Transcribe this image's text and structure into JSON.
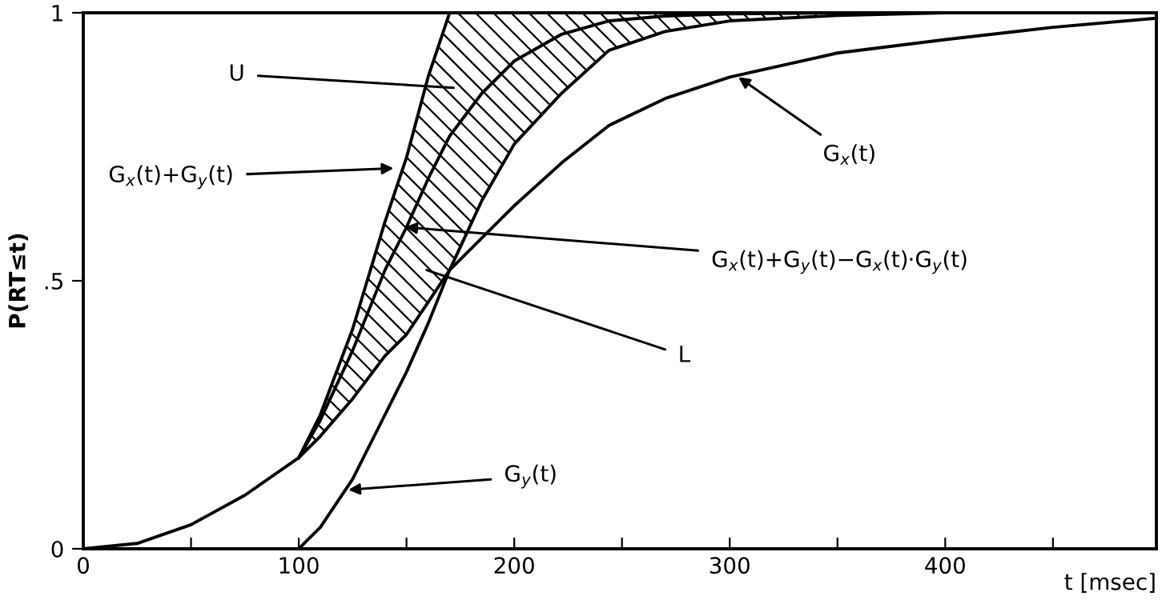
{
  "chart_data": {
    "type": "line",
    "xlabel": "t [msec]",
    "ylabel": "P(RT≤t)",
    "x": [
      0,
      25,
      50,
      75,
      100,
      110,
      125,
      140,
      150,
      160,
      170,
      185,
      200,
      222,
      244,
      270,
      300,
      350,
      400,
      450,
      498
    ],
    "series": [
      {
        "color": "#000000",
        "values": [
          0,
          0.01,
          0.045,
          0.1,
          0.17,
          0.21,
          0.28,
          0.36,
          0.4,
          0.46,
          0.52,
          0.58,
          0.64,
          0.72,
          0.79,
          0.84,
          0.88,
          0.925,
          0.95,
          0.973,
          0.99
        ]
      },
      {
        "color": "#000000",
        "values": [
          0,
          0,
          0,
          0,
          0,
          0.04,
          0.13,
          0.25,
          0.33,
          0.42,
          0.52,
          0.65,
          0.755,
          0.85,
          0.93,
          0.965,
          0.985,
          0.995,
          1,
          1,
          1
        ]
      },
      {
        "color": "#000000",
        "values": [
          null,
          null,
          null,
          null,
          0.17,
          0.25,
          0.41,
          0.61,
          0.73,
          0.88,
          1,
          null,
          null,
          null,
          null,
          null,
          null,
          null,
          null,
          null,
          null
        ]
      },
      {
        "color": "#000000",
        "values": [
          null,
          null,
          null,
          null,
          0.17,
          0.24,
          0.37,
          0.52,
          0.6,
          0.69,
          0.77,
          0.85,
          0.91,
          0.96,
          0.985,
          0.994,
          0.998,
          1,
          1,
          1,
          1
        ],
        "lower": [
          null,
          null,
          null,
          null,
          0.17,
          0.21,
          0.28,
          0.36,
          0.4,
          0.46,
          0.52,
          0.65,
          0.755,
          0.85,
          0.93,
          0.965,
          0.985,
          0.995,
          1,
          1,
          1
        ],
        "upper": [
          null,
          null,
          null,
          null,
          0.17,
          0.25,
          0.41,
          0.61,
          0.73,
          0.88,
          1,
          1,
          1,
          1,
          1,
          1,
          1,
          1,
          1,
          1,
          1
        ]
      }
    ],
    "xlim": [
      0,
      498
    ],
    "ylim": [
      0,
      1
    ],
    "xticks": [
      0,
      {
        "value": 50,
        "label": null
      },
      100,
      {
        "value": 150,
        "label": null
      },
      200,
      {
        "value": 250,
        "label": null
      },
      300,
      {
        "value": 350,
        "label": null
      },
      400,
      {
        "value": 450,
        "label": null
      }
    ],
    "yticks": [
      0,
      {
        "value": 0.5,
        "label": ".5"
      },
      1
    ],
    "grid": false,
    "legend": false,
    "annotations": [
      "U",
      {
        "text": "G$_{x}$(t)+G$_{y}$(t)",
        "x": 144,
        "y": 0.71
      },
      "G$_{x}$(t)+G$_{y}$(t)−G$_{x}$(t)·G$_{y}$(t)",
      "L",
      {
        "text": "G$_{x}$(t)",
        "x": 304,
        "y": 0.88
      },
      {
        "text": "G$_{y}$(t)",
        "x": 123,
        "y": 0.11
      }
    ]
  }
}
